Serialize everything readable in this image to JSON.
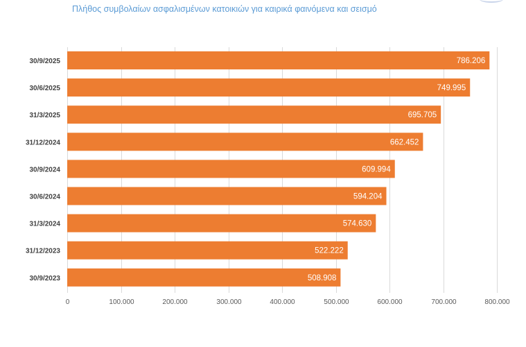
{
  "title": "Πλήθος συμβολαίων ασφαλισμένων κατοικιών για καιρικά φαινόμενα και σεισμό",
  "chart_data": {
    "type": "bar",
    "orientation": "horizontal",
    "title": "Πλήθος συμβολαίων ασφαλισμένων κατοικιών για καιρικά φαινόμενα και σεισμό",
    "xlabel": "",
    "ylabel": "",
    "categories": [
      "30/9/2025",
      "30/6/2025",
      "31/3/2025",
      "31/12/2024",
      "30/9/2024",
      "30/6/2024",
      "31/3/2024",
      "31/12/2023",
      "30/9/2023"
    ],
    "values": [
      786206,
      749995,
      695705,
      662452,
      609994,
      594204,
      574630,
      522222,
      508908
    ],
    "data_labels": [
      "786.206",
      "749.995",
      "695.705",
      "662.452",
      "609.994",
      "594.204",
      "574.630",
      "522.222",
      "508.908"
    ],
    "xlim": [
      0,
      800000
    ],
    "x_ticks": [
      0,
      100000,
      200000,
      300000,
      400000,
      500000,
      600000,
      700000,
      800000
    ],
    "x_tick_labels": [
      "0",
      "100.000",
      "200.000",
      "300.000",
      "400.000",
      "500.000",
      "600.000",
      "700.000",
      "800.000"
    ],
    "grid": true,
    "legend": "none",
    "bar_color": "#ed7d31",
    "grid_color": "#d9d9d9"
  }
}
